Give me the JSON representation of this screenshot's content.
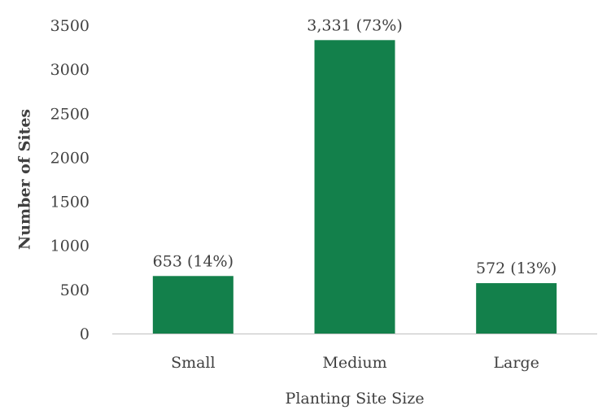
{
  "chart_data": {
    "type": "bar",
    "title": "",
    "xlabel": "Planting Site Size",
    "ylabel": "Number of Sites",
    "categories": [
      "Small",
      "Medium",
      "Large"
    ],
    "values": [
      653,
      3331,
      572
    ],
    "data_labels": [
      "653 (14%)",
      "3,331 (73%)",
      "572 (13%)"
    ],
    "ylim": [
      0,
      3500
    ],
    "yticks": [
      0,
      500,
      1000,
      1500,
      2000,
      2500,
      3000,
      3500
    ],
    "bar_color": "#13804b",
    "axis_color": "#bfbfbf",
    "grid": false,
    "legend": "none"
  }
}
